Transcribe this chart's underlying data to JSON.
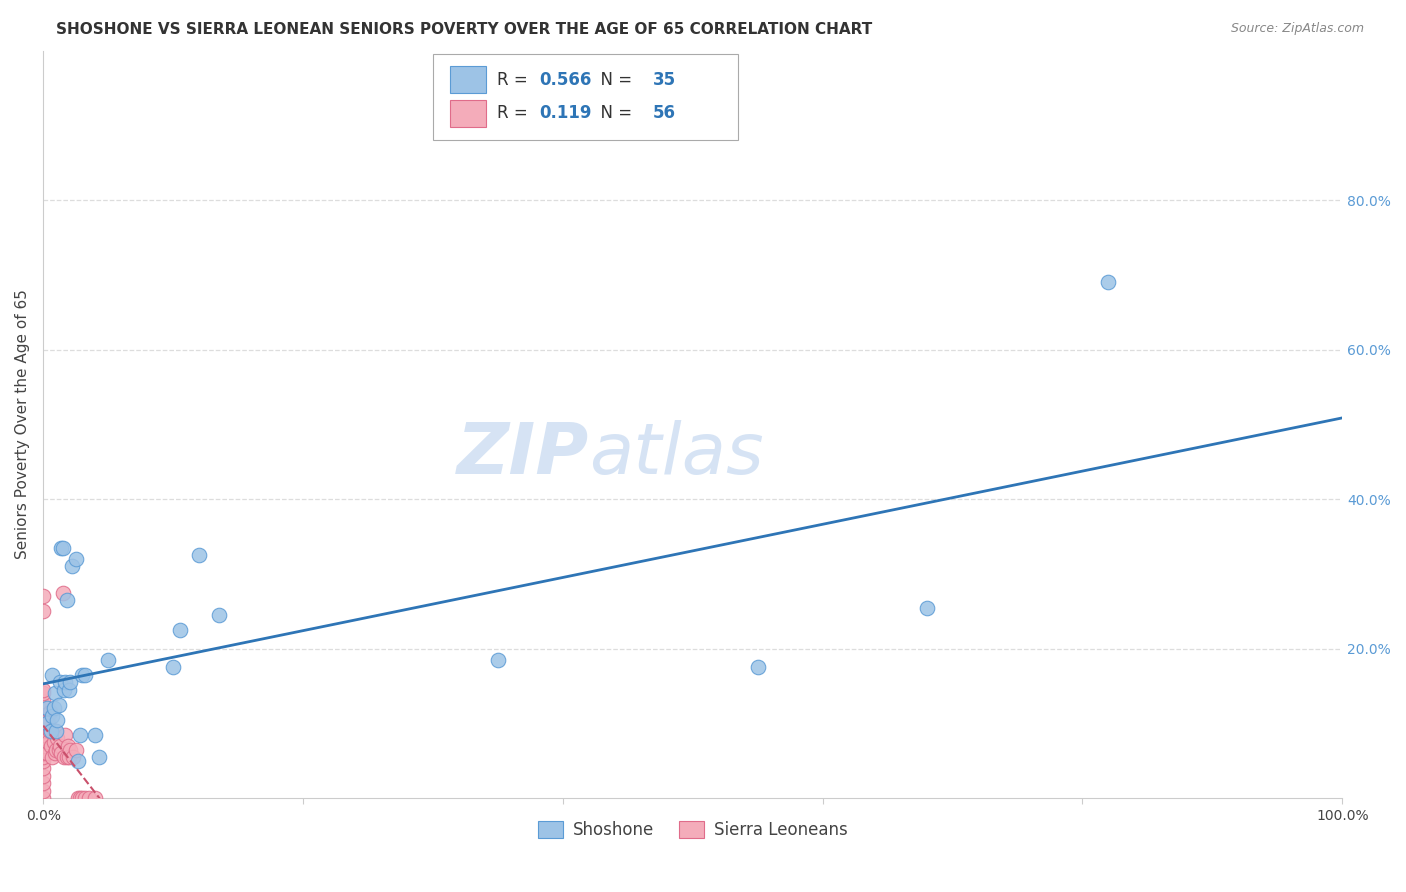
{
  "title": "SHOSHONE VS SIERRA LEONEAN SENIORS POVERTY OVER THE AGE OF 65 CORRELATION CHART",
  "source": "Source: ZipAtlas.com",
  "ylabel": "Seniors Poverty Over the Age of 65",
  "xlim": [
    0,
    1.0
  ],
  "ylim": [
    0,
    1.0
  ],
  "watermark_zip": "ZIP",
  "watermark_atlas": "atlas",
  "shoshone_R": "0.566",
  "shoshone_N": "35",
  "sierraleonean_R": "0.119",
  "sierraleonean_N": "56",
  "shoshone_color": "#9DC3E6",
  "sierraleonean_color": "#F4ACBA",
  "shoshone_edge_color": "#5B9BD5",
  "sierraleonean_edge_color": "#E06C8A",
  "shoshone_line_color": "#2E75B6",
  "sierraleonean_line_color": "#C9506B",
  "shoshone_x": [
    0.003,
    0.003,
    0.006,
    0.007,
    0.007,
    0.008,
    0.009,
    0.01,
    0.011,
    0.012,
    0.013,
    0.014,
    0.015,
    0.016,
    0.017,
    0.018,
    0.02,
    0.021,
    0.022,
    0.025,
    0.027,
    0.028,
    0.03,
    0.032,
    0.04,
    0.043,
    0.05,
    0.1,
    0.105,
    0.12,
    0.135,
    0.35,
    0.55,
    0.68,
    0.82
  ],
  "shoshone_y": [
    0.12,
    0.1,
    0.09,
    0.11,
    0.165,
    0.12,
    0.14,
    0.09,
    0.105,
    0.125,
    0.155,
    0.335,
    0.335,
    0.145,
    0.155,
    0.265,
    0.145,
    0.155,
    0.31,
    0.32,
    0.05,
    0.085,
    0.165,
    0.165,
    0.085,
    0.055,
    0.185,
    0.175,
    0.225,
    0.325,
    0.245,
    0.185,
    0.175,
    0.255,
    0.69
  ],
  "sierraleonean_x": [
    0.0,
    0.0,
    0.0,
    0.0,
    0.0,
    0.0,
    0.0,
    0.0,
    0.0,
    0.0,
    0.0,
    0.0,
    0.0,
    0.0,
    0.0,
    0.0,
    0.0,
    0.0,
    0.0,
    0.0,
    0.0,
    0.0,
    0.0,
    0.0,
    0.0,
    0.003,
    0.004,
    0.004,
    0.005,
    0.005,
    0.006,
    0.007,
    0.008,
    0.009,
    0.009,
    0.01,
    0.011,
    0.012,
    0.013,
    0.014,
    0.015,
    0.016,
    0.017,
    0.018,
    0.019,
    0.02,
    0.021,
    0.023,
    0.025,
    0.027,
    0.028,
    0.03,
    0.032,
    0.035,
    0.04,
    0.0
  ],
  "sierraleonean_y": [
    0.0,
    0.01,
    0.02,
    0.03,
    0.04,
    0.05,
    0.055,
    0.06,
    0.065,
    0.07,
    0.075,
    0.08,
    0.085,
    0.09,
    0.095,
    0.1,
    0.105,
    0.11,
    0.115,
    0.12,
    0.125,
    0.13,
    0.14,
    0.145,
    0.25,
    0.06,
    0.075,
    0.1,
    0.09,
    0.115,
    0.07,
    0.055,
    0.075,
    0.06,
    0.09,
    0.065,
    0.08,
    0.065,
    0.07,
    0.06,
    0.275,
    0.055,
    0.085,
    0.055,
    0.07,
    0.055,
    0.065,
    0.055,
    0.065,
    0.0,
    0.0,
    0.0,
    0.0,
    0.0,
    0.0,
    0.27
  ],
  "background_color": "#FFFFFF",
  "grid_color": "#DDDDDD",
  "title_fontsize": 11,
  "source_fontsize": 9,
  "ylabel_fontsize": 11,
  "tick_fontsize": 10,
  "legend_fontsize": 12,
  "watermark_fontsize_zip": 52,
  "watermark_fontsize_atlas": 52
}
